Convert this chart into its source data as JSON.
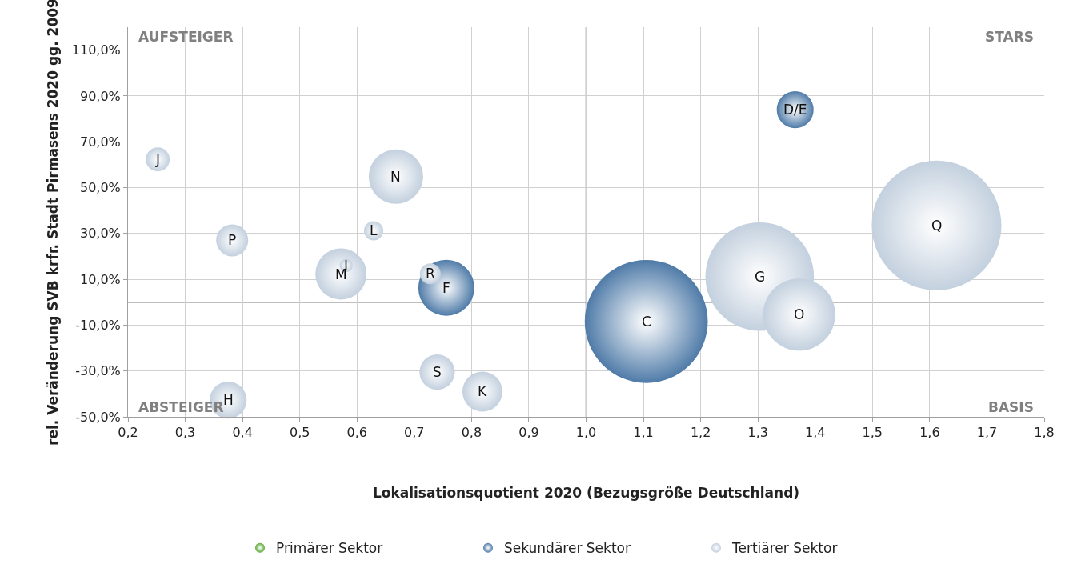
{
  "chart_data": {
    "type": "bubble",
    "xlabel": "Lokalisationsquotient 2020 (Bezugsgröße Deutschland)",
    "ylabel": "rel. Veränderung SVB krfr. Stadt Pirmasens 2020 gg. 2009",
    "xlim": [
      0.2,
      1.8
    ],
    "xticks": [
      {
        "value": 0.2,
        "label": "0,2"
      },
      {
        "value": 0.3,
        "label": "0,3"
      },
      {
        "value": 0.4,
        "label": "0,4"
      },
      {
        "value": 0.5,
        "label": "0,5"
      },
      {
        "value": 0.6,
        "label": "0,6"
      },
      {
        "value": 0.7,
        "label": "0,7"
      },
      {
        "value": 0.8,
        "label": "0,8"
      },
      {
        "value": 0.9,
        "label": "0,9"
      },
      {
        "value": 1.0,
        "label": "1,0"
      },
      {
        "value": 1.1,
        "label": "1,1"
      },
      {
        "value": 1.2,
        "label": "1,2"
      },
      {
        "value": 1.3,
        "label": "1,3"
      },
      {
        "value": 1.4,
        "label": "1,4"
      },
      {
        "value": 1.5,
        "label": "1,5"
      },
      {
        "value": 1.6,
        "label": "1,6"
      },
      {
        "value": 1.7,
        "label": "1,7"
      },
      {
        "value": 1.8,
        "label": "1,8"
      }
    ],
    "ylim": [
      -50,
      120
    ],
    "yticks": [
      {
        "value": 110,
        "label": "110,0%"
      },
      {
        "value": 90,
        "label": "90,0%"
      },
      {
        "value": 70,
        "label": "70,0%"
      },
      {
        "value": 50,
        "label": "50,0%"
      },
      {
        "value": 30,
        "label": "30,0%"
      },
      {
        "value": 10,
        "label": "10,0%"
      },
      {
        "value": -10,
        "label": "-10,0%"
      },
      {
        "value": -30,
        "label": "-30,0%"
      },
      {
        "value": -50,
        "label": "-50,0%"
      }
    ],
    "grid": true,
    "legend": "bottom",
    "ref_lines": [
      {
        "axis": "y",
        "value": 0,
        "color": "#808080"
      },
      {
        "axis": "x",
        "value": 1.0,
        "color": "#808080"
      }
    ],
    "series": [
      {
        "name": "Primärer Sektor",
        "color": "#5aa832"
      },
      {
        "name": "Sekundärer Sektor",
        "color": "#4f7ba8",
        "x": [
          1.105,
          1.365,
          0.756
        ],
        "values": [
          -8.4,
          84.0,
          6.3
        ],
        "sizes": [
          0.9,
          0.081,
          0.187
        ]
      },
      {
        "name": "Tertiärer Sektor",
        "color": "#c3d0de",
        "x": [
          0.252,
          0.382,
          0.668,
          0.629,
          0.572,
          0.581,
          0.728,
          0.74,
          0.819,
          0.375,
          1.303,
          1.372,
          1.612
        ],
        "values": [
          62.3,
          27.0,
          54.8,
          31.2,
          12.3,
          16.0,
          12.4,
          -30.5,
          -39.0,
          -42.7,
          11.2,
          -5.4,
          33.5
        ],
        "sizes": [
          0.034,
          0.061,
          0.176,
          0.022,
          0.156,
          0.01,
          0.026,
          0.074,
          0.095,
          0.081,
          0.7,
          0.31,
          1
        ]
      }
    ],
    "annotations": [
      "AUFSTEIGER",
      "STARS",
      "ABSTEIGER",
      "BASIS",
      {
        "text": "C",
        "x": 1.105,
        "y": -8.4
      },
      {
        "text": "D/E",
        "x": 1.365,
        "y": 84.0
      },
      {
        "text": "F",
        "x": 0.756,
        "y": 6.3
      },
      {
        "text": "J",
        "x": 0.252,
        "y": 62.3
      },
      {
        "text": "P",
        "x": 0.382,
        "y": 27.0
      },
      {
        "text": "N",
        "x": 0.668,
        "y": 54.8
      },
      {
        "text": "L",
        "x": 0.629,
        "y": 31.2
      },
      {
        "text": "M",
        "x": 0.572,
        "y": 12.3
      },
      {
        "text": "I",
        "x": 0.581,
        "y": 16.0
      },
      {
        "text": "R",
        "x": 0.728,
        "y": 12.4
      },
      {
        "text": "S",
        "x": 0.74,
        "y": -30.5
      },
      {
        "text": "K",
        "x": 0.819,
        "y": -39.0
      },
      {
        "text": "H",
        "x": 0.375,
        "y": -42.7
      },
      {
        "text": "G",
        "x": 1.303,
        "y": 11.2
      },
      {
        "text": "O",
        "x": 1.372,
        "y": -5.4
      },
      {
        "text": "Q",
        "x": 1.612,
        "y": 33.5
      }
    ]
  }
}
